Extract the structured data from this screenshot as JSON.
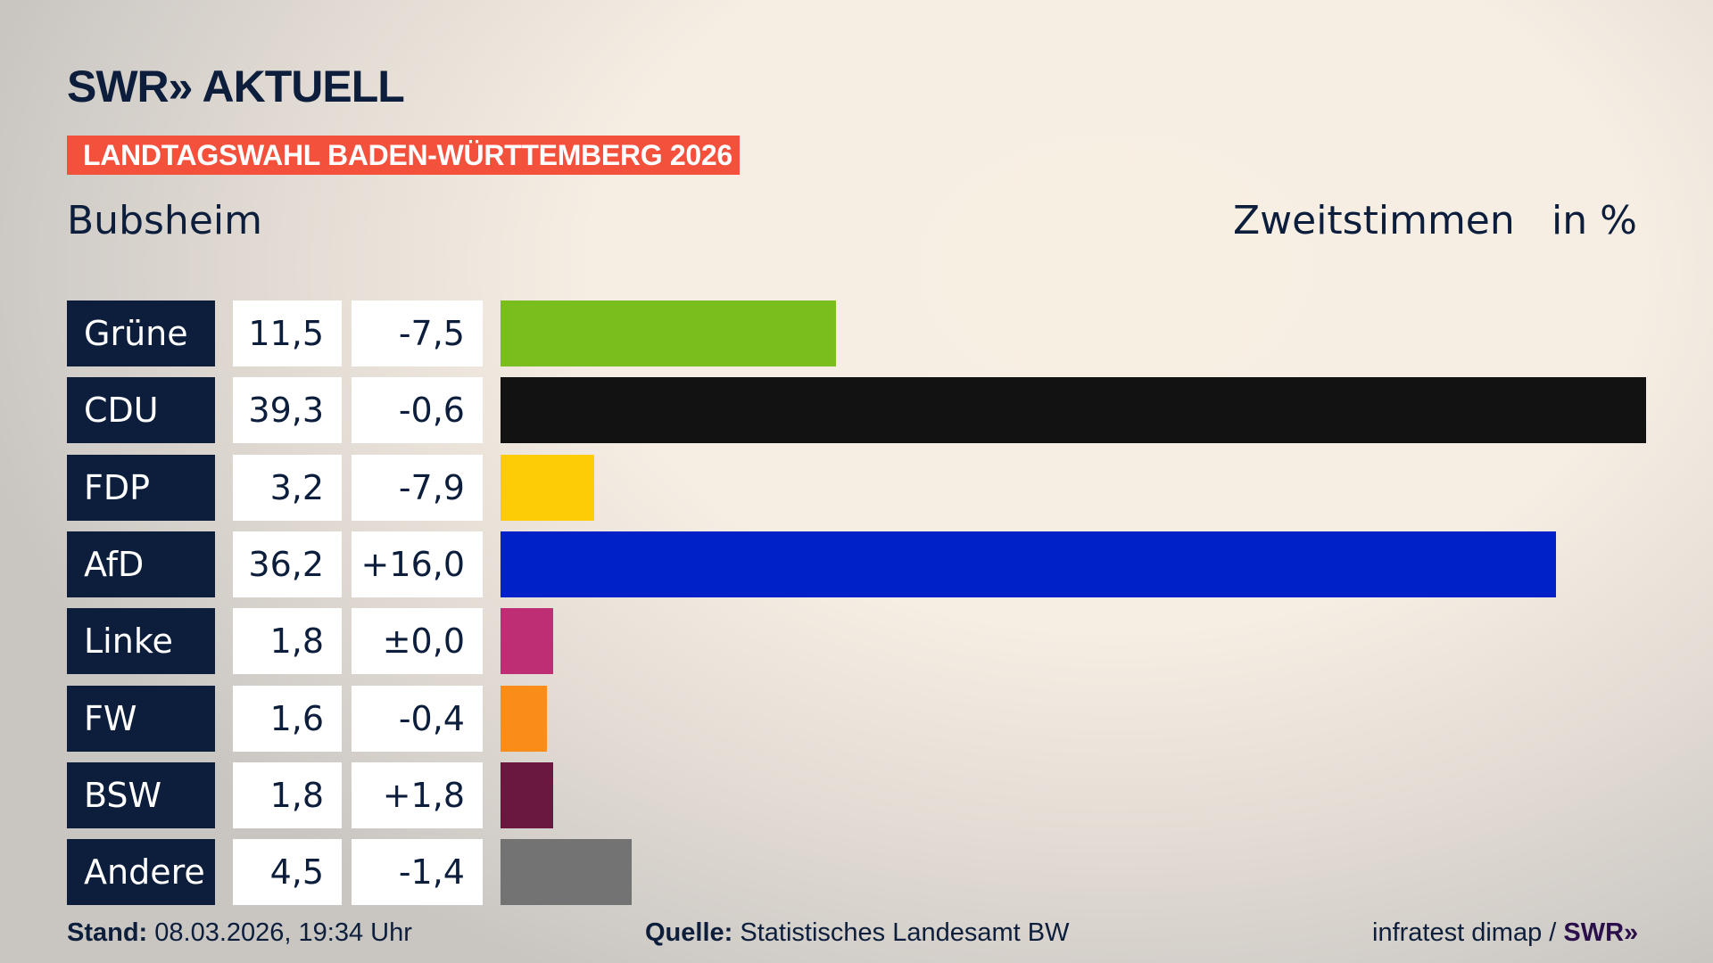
{
  "header": {
    "logo": "SWR» AKTUELL",
    "banner": "LANDTAGSWAHL BADEN-WÜRTTEMBERG 2026",
    "place": "Bubsheim",
    "metric": "Zweitstimmen",
    "unit": "in %"
  },
  "chart_data": {
    "type": "bar",
    "orientation": "horizontal",
    "categories": [
      "Grüne",
      "CDU",
      "FDP",
      "AfD",
      "Linke",
      "FW",
      "BSW",
      "Andere"
    ],
    "values": [
      11.5,
      39.3,
      3.2,
      36.2,
      1.8,
      1.6,
      1.8,
      4.5
    ],
    "value_labels": [
      "11,5",
      "39,3",
      "3,2",
      "36,2",
      "1,8",
      "1,6",
      "1,8",
      "4,5"
    ],
    "diff_labels": [
      "-7,5",
      "-0,6",
      "-7,9",
      "+16,0",
      "±0,0",
      "-0,4",
      "+1,8",
      "-1,4"
    ],
    "colors": [
      "#7abe1e",
      "#121212",
      "#fccc06",
      "#0021c8",
      "#be2e74",
      "#fa8d1a",
      "#6a1840",
      "#737373"
    ],
    "xlim": [
      0,
      39.3
    ],
    "grid": false
  },
  "footer": {
    "stand_label": "Stand:",
    "stand_value": " 08.03.2026, 19:34 Uhr",
    "source_label": "Quelle:",
    "source_value": " Statistisches Landesamt BW",
    "credit": "infratest dimap / ",
    "credit_logo": "SWR»"
  }
}
